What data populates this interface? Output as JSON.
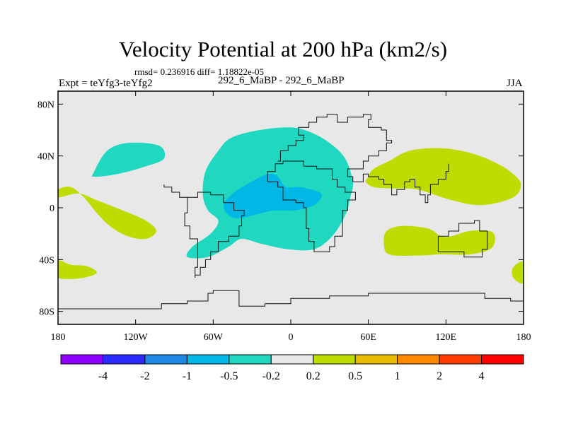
{
  "header": {
    "title": "Velocity Potential at 200 hPa (km2/s)",
    "stats": "rmsd= 0.236916 diff= 1.18822e-05",
    "expt": "Expt = teYfg3-teYfg2",
    "cases": "292_6_MaBP - 292_6_MaBP",
    "season": "JJA"
  },
  "chart_data": {
    "type": "heatmap",
    "title": "Velocity Potential at 200 hPa (km2/s)",
    "xlabel": "",
    "ylabel": "",
    "xlim": [
      -180,
      180
    ],
    "ylim": [
      -90,
      90
    ],
    "x_ticks": [
      {
        "value": -180,
        "label": "180"
      },
      {
        "value": -120,
        "label": "120W"
      },
      {
        "value": -60,
        "label": "60W"
      },
      {
        "value": 0,
        "label": "0"
      },
      {
        "value": 60,
        "label": "60E"
      },
      {
        "value": 120,
        "label": "120E"
      },
      {
        "value": 180,
        "label": "180"
      }
    ],
    "y_ticks": [
      {
        "value": 80,
        "label": "80N"
      },
      {
        "value": 40,
        "label": "40N"
      },
      {
        "value": 0,
        "label": "0"
      },
      {
        "value": -40,
        "label": "40S"
      },
      {
        "value": -80,
        "label": "80S"
      }
    ],
    "colorbar": {
      "levels": [
        "-4",
        "-2",
        "-1",
        "-0.5",
        "-0.2",
        "0.2",
        "0.5",
        "1",
        "2",
        "4"
      ],
      "colors": [
        "#8f00ff",
        "#2b2bff",
        "#1e8ae6",
        "#00b7e6",
        "#1fd8bf",
        "#e8e8e8",
        "#bedc00",
        "#e6bb00",
        "#ff8a00",
        "#ff3d00",
        "#ff0000"
      ]
    },
    "background_color": "#e8e8e8",
    "regions": [
      {
        "name": "positive-pacific-west",
        "category": "0.2 to 0.5",
        "color": "#bedc00",
        "points": [
          [
            -180,
            14
          ],
          [
            -170,
            16
          ],
          [
            -160,
            8
          ],
          [
            -150,
            -4
          ],
          [
            -140,
            -14
          ],
          [
            -126,
            -22
          ],
          [
            -112,
            -24
          ],
          [
            -104,
            -18
          ],
          [
            -112,
            -10
          ],
          [
            -130,
            -2
          ],
          [
            -148,
            5
          ],
          [
            -164,
            11
          ],
          [
            -180,
            8
          ]
        ]
      },
      {
        "name": "positive-south-pacific",
        "category": "0.2 to 0.5",
        "color": "#bedc00",
        "points": [
          [
            -180,
            -41
          ],
          [
            -170,
            -44
          ],
          [
            -158,
            -45
          ],
          [
            -150,
            -50
          ],
          [
            -160,
            -54
          ],
          [
            -174,
            -55
          ],
          [
            -180,
            -53
          ]
        ]
      },
      {
        "name": "positive-asia-indian",
        "category": "0.2 to 0.5",
        "color": "#bedc00",
        "points": [
          [
            60,
            24
          ],
          [
            64,
            30
          ],
          [
            76,
            36
          ],
          [
            92,
            44
          ],
          [
            116,
            46
          ],
          [
            140,
            42
          ],
          [
            160,
            34
          ],
          [
            172,
            26
          ],
          [
            178,
            18
          ],
          [
            172,
            8
          ],
          [
            148,
            2
          ],
          [
            124,
            6
          ],
          [
            98,
            14
          ],
          [
            78,
            15
          ],
          [
            64,
            16
          ],
          [
            58,
            20
          ]
        ]
      },
      {
        "name": "positive-indian-ocean",
        "category": "0.2 to 0.5",
        "color": "#bedc00",
        "points": [
          [
            74,
            -18
          ],
          [
            86,
            -14
          ],
          [
            106,
            -16
          ],
          [
            116,
            -22
          ],
          [
            124,
            -22
          ],
          [
            138,
            -18
          ],
          [
            154,
            -18
          ],
          [
            158,
            -24
          ],
          [
            154,
            -32
          ],
          [
            138,
            -36
          ],
          [
            116,
            -36
          ],
          [
            96,
            -37
          ],
          [
            76,
            -36
          ],
          [
            72,
            -28
          ]
        ]
      },
      {
        "name": "positive-east-edge",
        "category": "0.2 to 0.5",
        "color": "#bedc00",
        "points": [
          [
            180,
            -42
          ],
          [
            172,
            -46
          ],
          [
            172,
            -54
          ],
          [
            180,
            -58
          ]
        ]
      },
      {
        "name": "negative-north-pacific",
        "category": "-0.5 to -0.2",
        "color": "#1fd8bf",
        "points": [
          [
            -152,
            28
          ],
          [
            -142,
            44
          ],
          [
            -126,
            50
          ],
          [
            -102,
            48
          ],
          [
            -98,
            38
          ],
          [
            -112,
            32
          ],
          [
            -134,
            26
          ],
          [
            -152,
            24
          ]
        ]
      },
      {
        "name": "negative-atlantic-africa",
        "category": "-0.5 to -0.2",
        "color": "#1fd8bf",
        "points": [
          [
            -66,
            28
          ],
          [
            -56,
            44
          ],
          [
            -46,
            54
          ],
          [
            -24,
            60
          ],
          [
            0,
            62
          ],
          [
            16,
            58
          ],
          [
            30,
            50
          ],
          [
            42,
            38
          ],
          [
            48,
            20
          ],
          [
            46,
            8
          ],
          [
            42,
            -6
          ],
          [
            32,
            -22
          ],
          [
            18,
            -32
          ],
          [
            -2,
            -32
          ],
          [
            -22,
            -28
          ],
          [
            -38,
            -24
          ],
          [
            -48,
            -30
          ],
          [
            -64,
            -38
          ],
          [
            -80,
            -38
          ],
          [
            -76,
            -30
          ],
          [
            -62,
            -20
          ],
          [
            -56,
            -10
          ],
          [
            -64,
            -2
          ],
          [
            -68,
            10
          ]
        ]
      },
      {
        "name": "negative-core",
        "category": "-1 to -0.5",
        "color": "#00b7e6",
        "points": [
          [
            -52,
            2
          ],
          [
            -46,
            10
          ],
          [
            -34,
            18
          ],
          [
            -18,
            26
          ],
          [
            -10,
            24
          ],
          [
            -4,
            16
          ],
          [
            6,
            16
          ],
          [
            16,
            14
          ],
          [
            24,
            10
          ],
          [
            18,
            2
          ],
          [
            4,
            -2
          ],
          [
            -12,
            -2
          ],
          [
            -22,
            -4
          ],
          [
            -30,
            -6
          ],
          [
            -40,
            -8
          ],
          [
            -48,
            -6
          ]
        ]
      }
    ],
    "coastlines": [
      {
        "name": "africa-coast",
        "points": [
          [
            -18,
            20
          ],
          [
            -10,
            16
          ],
          [
            -6,
            6
          ],
          [
            4,
            4
          ],
          [
            8,
            4
          ],
          [
            10,
            0
          ],
          [
            12,
            -6
          ],
          [
            12,
            -16
          ],
          [
            14,
            -26
          ],
          [
            18,
            -34
          ],
          [
            24,
            -34
          ],
          [
            30,
            -30
          ],
          [
            34,
            -22
          ],
          [
            40,
            -14
          ],
          [
            40,
            -2
          ],
          [
            44,
            6
          ],
          [
            50,
            12
          ],
          [
            44,
            12
          ],
          [
            42,
            16
          ],
          [
            36,
            22
          ],
          [
            32,
            30
          ],
          [
            20,
            32
          ],
          [
            10,
            36
          ],
          [
            0,
            36
          ],
          [
            -6,
            34
          ],
          [
            -12,
            28
          ],
          [
            -18,
            20
          ]
        ]
      },
      {
        "name": "south-america-coast",
        "points": [
          [
            -80,
            8
          ],
          [
            -72,
            12
          ],
          [
            -62,
            10
          ],
          [
            -52,
            4
          ],
          [
            -44,
            -2
          ],
          [
            -36,
            -6
          ],
          [
            -38,
            -14
          ],
          [
            -40,
            -22
          ],
          [
            -48,
            -26
          ],
          [
            -56,
            -34
          ],
          [
            -62,
            -40
          ],
          [
            -66,
            -46
          ],
          [
            -70,
            -52
          ],
          [
            -74,
            -54
          ],
          [
            -74,
            -46
          ],
          [
            -72,
            -36
          ],
          [
            -72,
            -24
          ],
          [
            -78,
            -14
          ],
          [
            -82,
            -4
          ],
          [
            -80,
            2
          ],
          [
            -80,
            8
          ]
        ]
      },
      {
        "name": "north-america-coast",
        "points": [
          [
            -80,
            8
          ],
          [
            -86,
            12
          ],
          [
            -92,
            16
          ],
          [
            -98,
            18
          ]
        ]
      },
      {
        "name": "eurasia-coast",
        "points": [
          [
            -10,
            36
          ],
          [
            -8,
            44
          ],
          [
            -2,
            48
          ],
          [
            4,
            52
          ],
          [
            10,
            56
          ],
          [
            6,
            62
          ],
          [
            14,
            66
          ],
          [
            20,
            70
          ],
          [
            28,
            72
          ],
          [
            36,
            66
          ],
          [
            44,
            70
          ],
          [
            56,
            72
          ],
          [
            62,
            68
          ],
          [
            60,
            62
          ],
          [
            70,
            60
          ],
          [
            74,
            52
          ],
          [
            78,
            50
          ],
          [
            74,
            44
          ],
          [
            68,
            40
          ],
          [
            60,
            36
          ],
          [
            56,
            30
          ],
          [
            48,
            30
          ],
          [
            44,
            24
          ],
          [
            48,
            20
          ],
          [
            56,
            26
          ],
          [
            60,
            24
          ],
          [
            68,
            22
          ],
          [
            72,
            18
          ],
          [
            78,
            10
          ],
          [
            82,
            14
          ],
          [
            88,
            20
          ],
          [
            92,
            22
          ],
          [
            96,
            16
          ],
          [
            100,
            10
          ],
          [
            104,
            4
          ],
          [
            106,
            10
          ],
          [
            108,
            18
          ],
          [
            114,
            22
          ],
          [
            120,
            28
          ],
          [
            122,
            34
          ]
        ]
      },
      {
        "name": "australia-coast",
        "points": [
          [
            114,
            -22
          ],
          [
            122,
            -18
          ],
          [
            130,
            -12
          ],
          [
            136,
            -12
          ],
          [
            142,
            -10
          ],
          [
            146,
            -18
          ],
          [
            152,
            -26
          ],
          [
            152,
            -32
          ],
          [
            148,
            -38
          ],
          [
            140,
            -38
          ],
          [
            134,
            -34
          ],
          [
            124,
            -34
          ],
          [
            116,
            -34
          ],
          [
            114,
            -26
          ],
          [
            114,
            -22
          ]
        ]
      },
      {
        "name": "antarctica-coast",
        "points": [
          [
            -180,
            -78
          ],
          [
            -150,
            -78
          ],
          [
            -100,
            -74
          ],
          [
            -80,
            -72
          ],
          [
            -64,
            -66
          ],
          [
            -60,
            -64
          ],
          [
            -40,
            -76
          ],
          [
            -20,
            -74
          ],
          [
            0,
            -70
          ],
          [
            30,
            -68
          ],
          [
            60,
            -66
          ],
          [
            90,
            -66
          ],
          [
            120,
            -66
          ],
          [
            150,
            -70
          ],
          [
            170,
            -72
          ],
          [
            180,
            -78
          ]
        ]
      }
    ]
  }
}
